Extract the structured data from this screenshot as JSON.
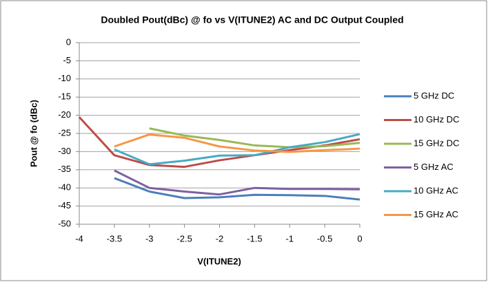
{
  "chart_data": {
    "type": "line",
    "title": "Doubled Pout(dBc) @ fo vs V(ITUNE2) AC and DC Output Coupled",
    "x_label": "V(ITUNE2)",
    "y_label": "Pout @ fo (dBc)",
    "x": [
      -4,
      -3.5,
      -3,
      -2.5,
      -2,
      -1.5,
      -1,
      -0.5,
      0
    ],
    "series": [
      {
        "name": "5 GHz DC",
        "color": "#4a7ebb",
        "values": [
          null,
          -37.3,
          -41,
          -42.8,
          -42.6,
          -41.9,
          -42,
          -42.2,
          -43.2
        ]
      },
      {
        "name": "10 GHz DC",
        "color": "#be4b48",
        "values": [
          -20.5,
          -31,
          -33.7,
          -34.2,
          -32.4,
          -31,
          -29.6,
          -28.3,
          -26.6
        ]
      },
      {
        "name": "15 GHz DC",
        "color": "#98b954",
        "values": [
          null,
          null,
          -23.6,
          -25.6,
          -26.8,
          -28.3,
          -28.8,
          -28.5,
          -27.6
        ]
      },
      {
        "name": "5 GHz AC",
        "color": "#7d60a0",
        "values": [
          null,
          -35.2,
          -40,
          -41,
          -41.8,
          -40,
          -40.3,
          -40.3,
          -40.4
        ]
      },
      {
        "name": "10 GHz AC",
        "color": "#46aac5",
        "values": [
          null,
          -29.4,
          -33.5,
          -32.5,
          -31.1,
          -31,
          -28.8,
          -27.4,
          -25.2
        ]
      },
      {
        "name": "15 GHz AC",
        "color": "#f79646",
        "values": [
          null,
          -28.6,
          -25.3,
          -26.2,
          -28.6,
          -29.7,
          -30.1,
          -29.6,
          -29.2
        ]
      }
    ],
    "xlim": [
      -4,
      0
    ],
    "xticks": [
      -4,
      -3.5,
      -3,
      -2.5,
      -2,
      -1.5,
      -1,
      -0.5,
      0
    ],
    "ylim": [
      -50,
      0
    ],
    "yticks": [
      0,
      -5,
      -10,
      -15,
      -20,
      -25,
      -30,
      -35,
      -40,
      -45,
      -50
    ],
    "grid": true,
    "legend": "right"
  }
}
